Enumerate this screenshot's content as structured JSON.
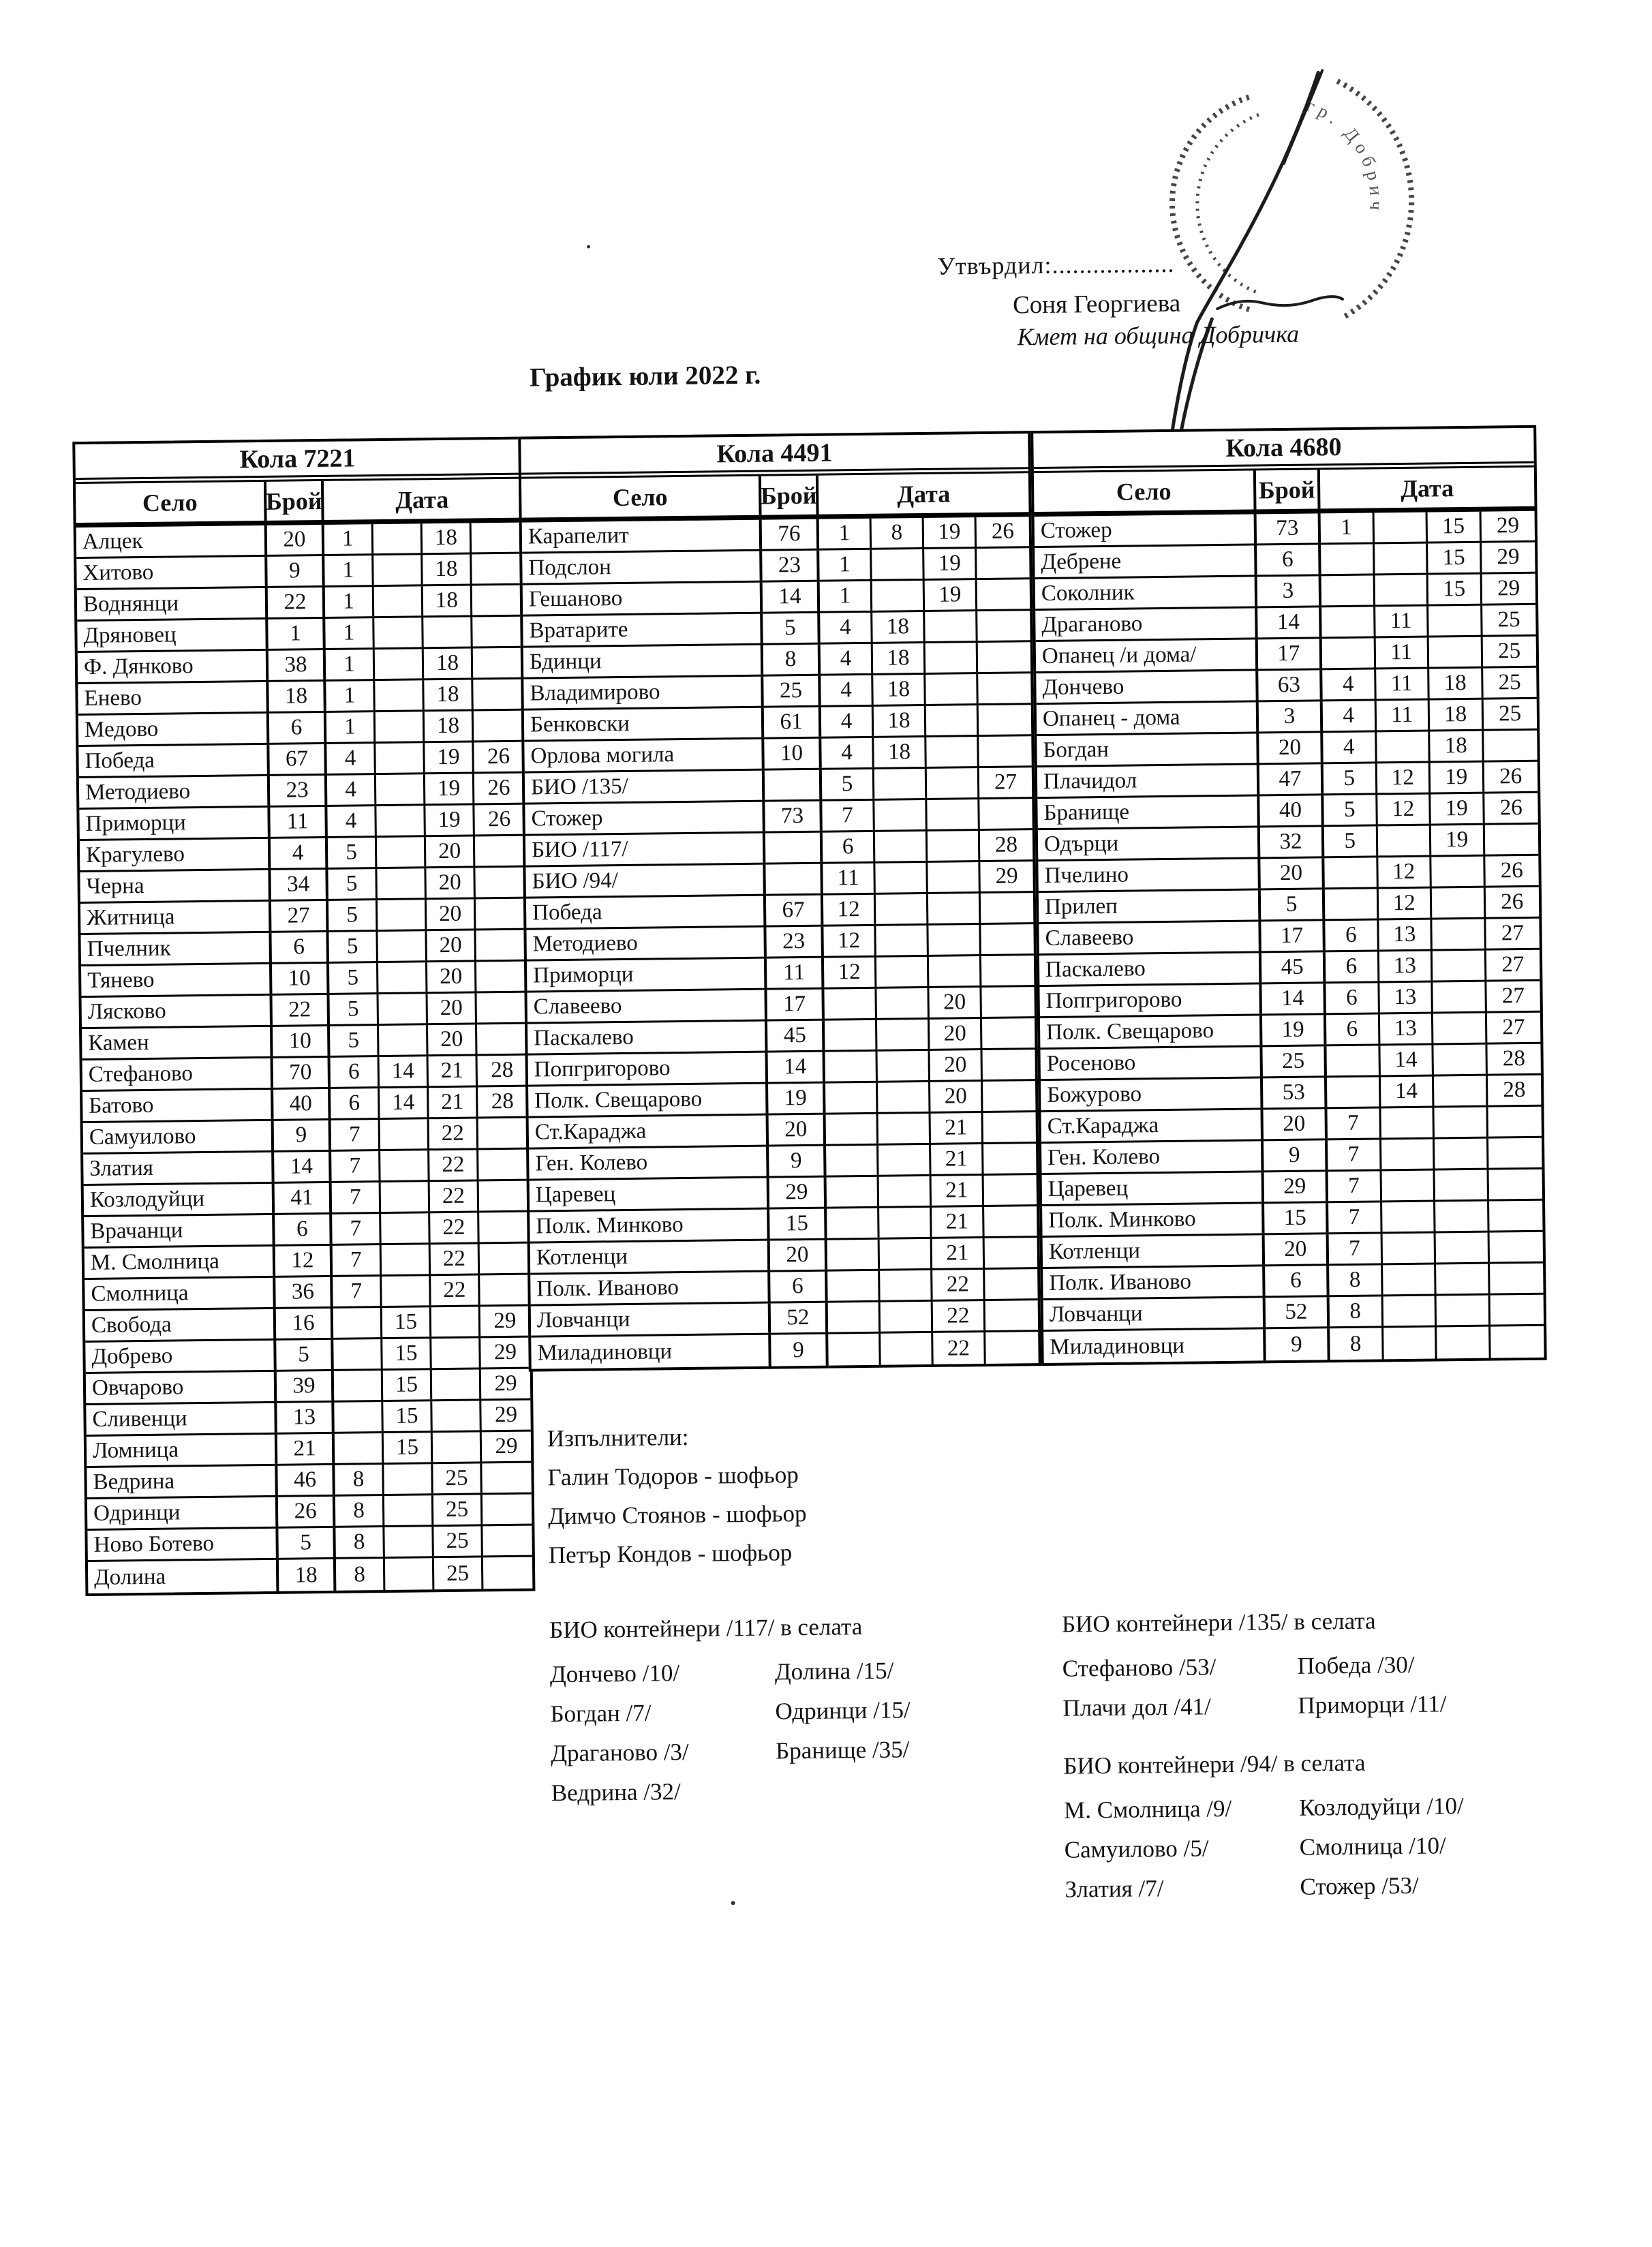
{
  "header": {
    "approved_label": "Утвърдил:..................",
    "approver_name": "Соня Георгиева",
    "approver_title": "Кмет  на община Добричка",
    "doc_title": "График юли 2022 г.",
    "stamp_text": "гр. Добрич"
  },
  "tables": [
    {
      "car": "Кола 7221",
      "col_selo": "Село",
      "col_broy": "Брой",
      "col_data": "Дата",
      "rows": [
        {
          "selo": "Алцек",
          "broy": "20",
          "d": [
            "1",
            "",
            "18",
            ""
          ]
        },
        {
          "selo": "Хитово",
          "broy": "9",
          "d": [
            "1",
            "",
            "18",
            ""
          ]
        },
        {
          "selo": "Воднянци",
          "broy": "22",
          "d": [
            "1",
            "",
            "18",
            ""
          ]
        },
        {
          "selo": "Дряновец",
          "broy": "1",
          "d": [
            "1",
            "",
            "",
            ""
          ]
        },
        {
          "selo": "Ф. Дянково",
          "broy": "38",
          "d": [
            "1",
            "",
            "18",
            ""
          ]
        },
        {
          "selo": "Енево",
          "broy": "18",
          "d": [
            "1",
            "",
            "18",
            ""
          ]
        },
        {
          "selo": "Медово",
          "broy": "6",
          "d": [
            "1",
            "",
            "18",
            ""
          ]
        },
        {
          "selo": "Победа",
          "broy": "67",
          "d": [
            "4",
            "",
            "19",
            "26"
          ]
        },
        {
          "selo": "Методиево",
          "broy": "23",
          "d": [
            "4",
            "",
            "19",
            "26"
          ]
        },
        {
          "selo": "Приморци",
          "broy": "11",
          "d": [
            "4",
            "",
            "19",
            "26"
          ]
        },
        {
          "selo": "Крагулево",
          "broy": "4",
          "d": [
            "5",
            "",
            "20",
            ""
          ]
        },
        {
          "selo": "Черна",
          "broy": "34",
          "d": [
            "5",
            "",
            "20",
            ""
          ]
        },
        {
          "selo": "Житница",
          "broy": "27",
          "d": [
            "5",
            "",
            "20",
            ""
          ]
        },
        {
          "selo": "Пчелник",
          "broy": "6",
          "d": [
            "5",
            "",
            "20",
            ""
          ]
        },
        {
          "selo": "Тянево",
          "broy": "10",
          "d": [
            "5",
            "",
            "20",
            ""
          ]
        },
        {
          "selo": "Лясково",
          "broy": "22",
          "d": [
            "5",
            "",
            "20",
            ""
          ]
        },
        {
          "selo": "Камен",
          "broy": "10",
          "d": [
            "5",
            "",
            "20",
            ""
          ]
        },
        {
          "selo": "Стефаново",
          "broy": "70",
          "d": [
            "6",
            "14",
            "21",
            "28"
          ]
        },
        {
          "selo": "Батово",
          "broy": "40",
          "d": [
            "6",
            "14",
            "21",
            "28"
          ]
        },
        {
          "selo": "Самуилово",
          "broy": "9",
          "d": [
            "7",
            "",
            "22",
            ""
          ]
        },
        {
          "selo": "Златия",
          "broy": "14",
          "d": [
            "7",
            "",
            "22",
            ""
          ]
        },
        {
          "selo": "Козлодуйци",
          "broy": "41",
          "d": [
            "7",
            "",
            "22",
            ""
          ]
        },
        {
          "selo": "Врачанци",
          "broy": "6",
          "d": [
            "7",
            "",
            "22",
            ""
          ]
        },
        {
          "selo": "М. Смолница",
          "broy": "12",
          "d": [
            "7",
            "",
            "22",
            ""
          ]
        },
        {
          "selo": "Смолница",
          "broy": "36",
          "d": [
            "7",
            "",
            "22",
            ""
          ]
        },
        {
          "selo": "Свобода",
          "broy": "16",
          "d": [
            "",
            "15",
            "",
            "29"
          ]
        },
        {
          "selo": "Добрево",
          "broy": "5",
          "d": [
            "",
            "15",
            "",
            "29"
          ]
        },
        {
          "selo": "Овчарово",
          "broy": "39",
          "d": [
            "",
            "15",
            "",
            "29"
          ]
        },
        {
          "selo": "Сливенци",
          "broy": "13",
          "d": [
            "",
            "15",
            "",
            "29"
          ]
        },
        {
          "selo": "Ломница",
          "broy": "21",
          "d": [
            "",
            "15",
            "",
            "29"
          ]
        },
        {
          "selo": "Ведрина",
          "broy": "46",
          "d": [
            "8",
            "",
            "25",
            ""
          ]
        },
        {
          "selo": "Одринци",
          "broy": "26",
          "d": [
            "8",
            "",
            "25",
            ""
          ]
        },
        {
          "selo": "Ново Ботево",
          "broy": "5",
          "d": [
            "8",
            "",
            "25",
            ""
          ]
        },
        {
          "selo": "Долина",
          "broy": "18",
          "d": [
            "8",
            "",
            "25",
            ""
          ]
        }
      ]
    },
    {
      "car": "Кола 4491",
      "col_selo": "Село",
      "col_broy": "Брой",
      "col_data": "Дата",
      "rows": [
        {
          "selo": "Карапелит",
          "broy": "76",
          "d": [
            "1",
            "8",
            "19",
            "26"
          ]
        },
        {
          "selo": "Подслон",
          "broy": "23",
          "d": [
            "1",
            "",
            "19",
            ""
          ]
        },
        {
          "selo": "Гешаново",
          "broy": "14",
          "d": [
            "1",
            "",
            "19",
            ""
          ]
        },
        {
          "selo": "Вратарите",
          "broy": "5",
          "d": [
            "4",
            "18",
            "",
            ""
          ]
        },
        {
          "selo": "Бдинци",
          "broy": "8",
          "d": [
            "4",
            "18",
            "",
            ""
          ]
        },
        {
          "selo": "Владимирово",
          "broy": "25",
          "d": [
            "4",
            "18",
            "",
            ""
          ]
        },
        {
          "selo": "Бенковски",
          "broy": "61",
          "d": [
            "4",
            "18",
            "",
            ""
          ]
        },
        {
          "selo": "Орлова могила",
          "broy": "10",
          "d": [
            "4",
            "18",
            "",
            ""
          ]
        },
        {
          "selo": "БИО /135/",
          "broy": "",
          "d": [
            "5",
            "",
            "",
            "27"
          ]
        },
        {
          "selo": "Стожер",
          "broy": "73",
          "d": [
            "7",
            "",
            "",
            ""
          ]
        },
        {
          "selo": "БИО /117/",
          "broy": "",
          "d": [
            "6",
            "",
            "",
            "28"
          ]
        },
        {
          "selo": "БИО /94/",
          "broy": "",
          "d": [
            "11",
            "",
            "",
            "29"
          ]
        },
        {
          "selo": "Победа",
          "broy": "67",
          "d": [
            "12",
            "",
            "",
            ""
          ]
        },
        {
          "selo": "Методиево",
          "broy": "23",
          "d": [
            "12",
            "",
            "",
            ""
          ]
        },
        {
          "selo": "Приморци",
          "broy": "11",
          "d": [
            "12",
            "",
            "",
            ""
          ]
        },
        {
          "selo": "Славеево",
          "broy": "17",
          "d": [
            "",
            "",
            "20",
            ""
          ]
        },
        {
          "selo": "Паскалево",
          "broy": "45",
          "d": [
            "",
            "",
            "20",
            ""
          ]
        },
        {
          "selo": "Попгригорово",
          "broy": "14",
          "d": [
            "",
            "",
            "20",
            ""
          ]
        },
        {
          "selo": "Полк. Свещарово",
          "broy": "19",
          "d": [
            "",
            "",
            "20",
            ""
          ]
        },
        {
          "selo": "Ст.Караджа",
          "broy": "20",
          "d": [
            "",
            "",
            "21",
            ""
          ]
        },
        {
          "selo": "Ген. Колево",
          "broy": "9",
          "d": [
            "",
            "",
            "21",
            ""
          ]
        },
        {
          "selo": "Царевец",
          "broy": "29",
          "d": [
            "",
            "",
            "21",
            ""
          ]
        },
        {
          "selo": "Полк. Минково",
          "broy": "15",
          "d": [
            "",
            "",
            "21",
            ""
          ]
        },
        {
          "selo": "Котленци",
          "broy": "20",
          "d": [
            "",
            "",
            "21",
            ""
          ]
        },
        {
          "selo": "Полк. Иваново",
          "broy": "6",
          "d": [
            "",
            "",
            "22",
            ""
          ]
        },
        {
          "selo": "Ловчанци",
          "broy": "52",
          "d": [
            "",
            "",
            "22",
            ""
          ]
        },
        {
          "selo": "Миладиновци",
          "broy": "9",
          "d": [
            "",
            "",
            "22",
            ""
          ]
        }
      ]
    },
    {
      "car": "Кола 4680",
      "col_selo": "Село",
      "col_broy": "Брой",
      "col_data": "Дата",
      "rows": [
        {
          "selo": "Стожер",
          "broy": "73",
          "d": [
            "1",
            "",
            "15",
            "29"
          ]
        },
        {
          "selo": "Дебрене",
          "broy": "6",
          "d": [
            "",
            "",
            "15",
            "29"
          ]
        },
        {
          "selo": "Соколник",
          "broy": "3",
          "d": [
            "",
            "",
            "15",
            "29"
          ]
        },
        {
          "selo": "Драганово",
          "broy": "14",
          "d": [
            "",
            "11",
            "",
            "25"
          ]
        },
        {
          "selo": "Опанец /и дома/",
          "broy": "17",
          "d": [
            "",
            "11",
            "",
            "25"
          ]
        },
        {
          "selo": "Дончево",
          "broy": "63",
          "d": [
            "4",
            "11",
            "18",
            "25"
          ]
        },
        {
          "selo": "Опанец - дома",
          "broy": "3",
          "d": [
            "4",
            "11",
            "18",
            "25"
          ]
        },
        {
          "selo": "Богдан",
          "broy": "20",
          "d": [
            "4",
            "",
            "18",
            ""
          ]
        },
        {
          "selo": "Плачидол",
          "broy": "47",
          "d": [
            "5",
            "12",
            "19",
            "26"
          ]
        },
        {
          "selo": "Бранище",
          "broy": "40",
          "d": [
            "5",
            "12",
            "19",
            "26"
          ]
        },
        {
          "selo": "Одърци",
          "broy": "32",
          "d": [
            "5",
            "",
            "19",
            ""
          ]
        },
        {
          "selo": "Пчелино",
          "broy": "20",
          "d": [
            "",
            "12",
            "",
            "26"
          ]
        },
        {
          "selo": "Прилеп",
          "broy": "5",
          "d": [
            "",
            "12",
            "",
            "26"
          ]
        },
        {
          "selo": "Славеево",
          "broy": "17",
          "d": [
            "6",
            "13",
            "",
            "27"
          ]
        },
        {
          "selo": "Паскалево",
          "broy": "45",
          "d": [
            "6",
            "13",
            "",
            "27"
          ]
        },
        {
          "selo": "Попгригорово",
          "broy": "14",
          "d": [
            "6",
            "13",
            "",
            "27"
          ]
        },
        {
          "selo": "Полк. Свещарово",
          "broy": "19",
          "d": [
            "6",
            "13",
            "",
            "27"
          ]
        },
        {
          "selo": "Росеново",
          "broy": "25",
          "d": [
            "",
            "14",
            "",
            "28"
          ]
        },
        {
          "selo": "Божурово",
          "broy": "53",
          "d": [
            "",
            "14",
            "",
            "28"
          ]
        },
        {
          "selo": "Ст.Караджа",
          "broy": "20",
          "d": [
            "7",
            "",
            "",
            ""
          ]
        },
        {
          "selo": "Ген. Колево",
          "broy": "9",
          "d": [
            "7",
            "",
            "",
            ""
          ]
        },
        {
          "selo": "Царевец",
          "broy": "29",
          "d": [
            "7",
            "",
            "",
            ""
          ]
        },
        {
          "selo": "Полк. Минково",
          "broy": "15",
          "d": [
            "7",
            "",
            "",
            ""
          ]
        },
        {
          "selo": "Котленци",
          "broy": "20",
          "d": [
            "7",
            "",
            "",
            ""
          ]
        },
        {
          "selo": "Полк. Иваново",
          "broy": "6",
          "d": [
            "8",
            "",
            "",
            ""
          ]
        },
        {
          "selo": "Ловчанци",
          "broy": "52",
          "d": [
            "8",
            "",
            "",
            ""
          ]
        },
        {
          "selo": "Миладиновци",
          "broy": "9",
          "d": [
            "8",
            "",
            "",
            ""
          ]
        }
      ]
    }
  ],
  "executors": {
    "heading": "Изпълнители:",
    "items": [
      "Галин Тодоров - шофьор",
      "Димчо Стоянов - шофьор",
      "Петър Кондов - шофьор"
    ]
  },
  "bio_sections": [
    {
      "heading": "БИО контейнери /117/ в селата",
      "rows": [
        [
          "Дончево /10/",
          "Долина /15/"
        ],
        [
          "Богдан /7/",
          "Одринци /15/"
        ],
        [
          "Драганово /3/",
          "Бранище /35/"
        ],
        [
          "Ведрина /32/",
          ""
        ]
      ]
    },
    {
      "heading": "БИО контейнери /135/ в селата",
      "rows": [
        [
          "Стефаново /53/",
          "Победа /30/"
        ],
        [
          "Плачи дол /41/",
          "Приморци /11/"
        ]
      ]
    },
    {
      "heading": "БИО контейнери /94/ в селата",
      "rows": [
        [
          "М. Смолница /9/",
          "Козлодуйци /10/"
        ],
        [
          "Самуилово /5/",
          "Смолница /10/"
        ],
        [
          "Златия /7/",
          "Стожер /53/"
        ]
      ]
    }
  ]
}
